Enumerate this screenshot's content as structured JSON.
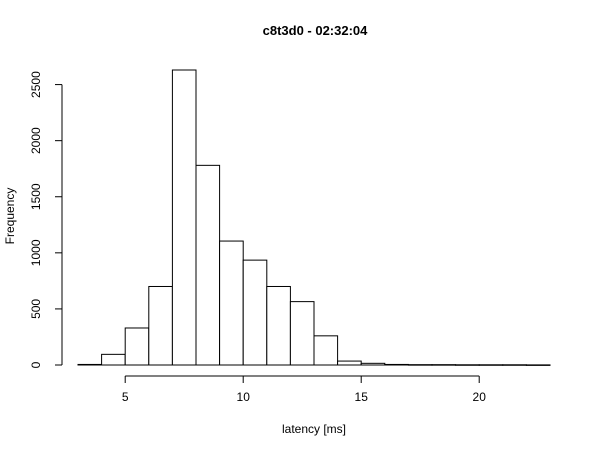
{
  "chart_data": {
    "type": "bar",
    "subtype": "histogram",
    "title": "c8t3d0 - 02:32:04",
    "xlabel": "latency [ms]",
    "ylabel": "Frequency",
    "bin_width": 1,
    "bins": [
      {
        "start": 3,
        "end": 4,
        "count": 5
      },
      {
        "start": 4,
        "end": 5,
        "count": 95
      },
      {
        "start": 5,
        "end": 6,
        "count": 330
      },
      {
        "start": 6,
        "end": 7,
        "count": 700
      },
      {
        "start": 7,
        "end": 8,
        "count": 2630
      },
      {
        "start": 8,
        "end": 9,
        "count": 1780
      },
      {
        "start": 9,
        "end": 10,
        "count": 1105
      },
      {
        "start": 10,
        "end": 11,
        "count": 935
      },
      {
        "start": 11,
        "end": 12,
        "count": 700
      },
      {
        "start": 12,
        "end": 13,
        "count": 565
      },
      {
        "start": 13,
        "end": 14,
        "count": 260
      },
      {
        "start": 14,
        "end": 15,
        "count": 35
      },
      {
        "start": 15,
        "end": 16,
        "count": 15
      },
      {
        "start": 16,
        "end": 17,
        "count": 5
      },
      {
        "start": 17,
        "end": 18,
        "count": 3
      },
      {
        "start": 18,
        "end": 19,
        "count": 3
      },
      {
        "start": 19,
        "end": 20,
        "count": 2
      },
      {
        "start": 20,
        "end": 21,
        "count": 2
      },
      {
        "start": 21,
        "end": 22,
        "count": 2
      },
      {
        "start": 22,
        "end": 23,
        "count": 1
      }
    ],
    "xlim": [
      3,
      23
    ],
    "ylim": [
      0,
      2630
    ],
    "x_ticks": [
      5,
      10,
      15,
      20
    ],
    "y_ticks": [
      0,
      500,
      1000,
      1500,
      2000,
      2500
    ],
    "grid": false,
    "legend": "none",
    "colors": {
      "bar_fill": "#ffffff",
      "bar_stroke": "#000000"
    }
  }
}
